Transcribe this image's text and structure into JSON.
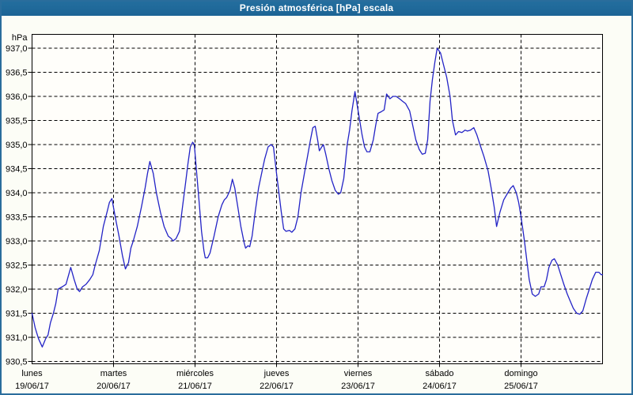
{
  "window": {
    "title": "Presión atmosférica [hPa] escala",
    "title_bar_color": "#1e699c",
    "border_color": "#2a6d9c",
    "background_color": "#fcfdf6"
  },
  "chart_data": {
    "type": "line",
    "title": "Presión atmosférica [hPa] escala",
    "unit_label": "hPa",
    "grid": "dashed",
    "legend": "none",
    "line_color": "#2323c6",
    "plot_background": "#fffefa",
    "y_axis": {
      "min": 930.5,
      "max": 937.0,
      "tick_step": 0.5,
      "tick_labels": [
        "937,0",
        "936,5",
        "936,0",
        "935,5",
        "935,0",
        "934,5",
        "934,0",
        "933,5",
        "933,0",
        "932,5",
        "932,0",
        "931,5",
        "931,0",
        "930,5"
      ]
    },
    "x_axis": {
      "hours_total": 168,
      "days": [
        {
          "name": "lunes",
          "date": "19/06/17"
        },
        {
          "name": "martes",
          "date": "20/06/17"
        },
        {
          "name": "miércoles",
          "date": "21/06/17"
        },
        {
          "name": "jueves",
          "date": "22/06/17"
        },
        {
          "name": "viernes",
          "date": "23/06/17"
        },
        {
          "name": "sábado",
          "date": "24/06/17"
        },
        {
          "name": "domingo",
          "date": "25/06/17"
        }
      ]
    },
    "series": [
      {
        "name": "Presión atmosférica",
        "points_hour_hpa": [
          [
            0,
            931.5
          ],
          [
            0.9,
            931.2
          ],
          [
            1.9,
            930.97
          ],
          [
            3,
            930.8
          ],
          [
            4,
            930.97
          ],
          [
            4.7,
            931.05
          ],
          [
            5.4,
            931.3
          ],
          [
            6.3,
            931.5
          ],
          [
            7,
            931.7
          ],
          [
            7.7,
            932
          ],
          [
            8.9,
            932.05
          ],
          [
            10,
            932.1
          ],
          [
            11,
            932.35
          ],
          [
            11.4,
            932.45
          ],
          [
            12.4,
            932.2
          ],
          [
            13.3,
            932
          ],
          [
            14,
            931.95
          ],
          [
            14.9,
            932.05
          ],
          [
            15.9,
            932.1
          ],
          [
            17,
            932.2
          ],
          [
            17.9,
            932.3
          ],
          [
            18.6,
            932.5
          ],
          [
            19.8,
            932.8
          ],
          [
            21,
            933.3
          ],
          [
            22.1,
            933.6
          ],
          [
            22.8,
            933.8
          ],
          [
            23.5,
            933.88
          ],
          [
            24.5,
            933.5
          ],
          [
            25.6,
            933.1
          ],
          [
            26.6,
            932.7
          ],
          [
            27.5,
            932.42
          ],
          [
            28.4,
            932.55
          ],
          [
            29.1,
            932.85
          ],
          [
            29.8,
            933
          ],
          [
            31,
            933.3
          ],
          [
            32.2,
            933.7
          ],
          [
            33.3,
            934.1
          ],
          [
            34,
            934.4
          ],
          [
            34.7,
            934.65
          ],
          [
            35.7,
            934.4
          ],
          [
            36.6,
            934
          ],
          [
            37.8,
            933.6
          ],
          [
            38.9,
            933.3
          ],
          [
            40.1,
            933.1
          ],
          [
            41,
            933.05
          ],
          [
            41.5,
            933
          ],
          [
            42.4,
            933.05
          ],
          [
            43.4,
            933.2
          ],
          [
            44.3,
            933.7
          ],
          [
            45.2,
            934.2
          ],
          [
            45.9,
            934.6
          ],
          [
            46.6,
            934.95
          ],
          [
            47.3,
            935.05
          ],
          [
            47.8,
            935
          ],
          [
            48.5,
            934.4
          ],
          [
            49.2,
            933.8
          ],
          [
            49.9,
            933.2
          ],
          [
            50.6,
            932.8
          ],
          [
            51,
            932.65
          ],
          [
            51.7,
            932.65
          ],
          [
            52.4,
            932.75
          ],
          [
            53.6,
            933.1
          ],
          [
            54.8,
            933.5
          ],
          [
            55.9,
            933.75
          ],
          [
            56.6,
            933.85
          ],
          [
            57.3,
            933.9
          ],
          [
            58.3,
            934.05
          ],
          [
            59,
            934.28
          ],
          [
            59.7,
            934.1
          ],
          [
            60.6,
            933.7
          ],
          [
            61.5,
            933.3
          ],
          [
            62.5,
            932.95
          ],
          [
            62.9,
            932.85
          ],
          [
            63.6,
            932.9
          ],
          [
            64.1,
            932.88
          ],
          [
            64.8,
            933.1
          ],
          [
            65.7,
            933.6
          ],
          [
            66.7,
            934.1
          ],
          [
            67.6,
            934.4
          ],
          [
            68.5,
            934.7
          ],
          [
            69.5,
            934.95
          ],
          [
            70.4,
            935
          ],
          [
            71.1,
            934.95
          ],
          [
            72,
            934.4
          ],
          [
            72.7,
            934
          ],
          [
            73.4,
            933.6
          ],
          [
            74.1,
            933.25
          ],
          [
            74.8,
            933.2
          ],
          [
            75.8,
            933.22
          ],
          [
            76.5,
            933.18
          ],
          [
            77.4,
            933.25
          ],
          [
            78.3,
            933.5
          ],
          [
            79.2,
            934
          ],
          [
            80.2,
            934.4
          ],
          [
            81.1,
            934.75
          ],
          [
            82,
            935.1
          ],
          [
            82.7,
            935.35
          ],
          [
            83.4,
            935.38
          ],
          [
            84.1,
            935.1
          ],
          [
            84.6,
            934.87
          ],
          [
            85.3,
            934.95
          ],
          [
            85.8,
            935
          ],
          [
            86.5,
            934.8
          ],
          [
            87.4,
            934.5
          ],
          [
            88.3,
            934.25
          ],
          [
            89.3,
            934.05
          ],
          [
            90.2,
            933.97
          ],
          [
            90.9,
            934
          ],
          [
            91.8,
            934.3
          ],
          [
            92.8,
            935
          ],
          [
            93.5,
            935.3
          ],
          [
            94.2,
            935.7
          ],
          [
            95.1,
            936.1
          ],
          [
            95.8,
            935.8
          ],
          [
            96.5,
            935.5
          ],
          [
            97.2,
            935.2
          ],
          [
            97.9,
            934.95
          ],
          [
            98.6,
            934.85
          ],
          [
            99.5,
            934.85
          ],
          [
            100.5,
            935.1
          ],
          [
            101.2,
            935.4
          ],
          [
            101.9,
            935.65
          ],
          [
            102.8,
            935.68
          ],
          [
            103.7,
            935.72
          ],
          [
            104.4,
            936.05
          ],
          [
            105.4,
            935.95
          ],
          [
            106.3,
            936
          ],
          [
            107.2,
            936
          ],
          [
            108.2,
            935.95
          ],
          [
            109.1,
            935.9
          ],
          [
            110,
            935.85
          ],
          [
            111.2,
            935.7
          ],
          [
            112.1,
            935.4
          ],
          [
            113,
            935.1
          ],
          [
            114,
            934.9
          ],
          [
            114.9,
            934.8
          ],
          [
            115.8,
            934.82
          ],
          [
            116.5,
            935.1
          ],
          [
            117.2,
            935.9
          ],
          [
            117.9,
            936.35
          ],
          [
            118.6,
            936.7
          ],
          [
            119.3,
            937
          ],
          [
            120.3,
            936.9
          ],
          [
            121.2,
            936.65
          ],
          [
            122.1,
            936.4
          ],
          [
            123.1,
            936
          ],
          [
            123.8,
            935.5
          ],
          [
            124.7,
            935.2
          ],
          [
            125.6,
            935.27
          ],
          [
            126.6,
            935.25
          ],
          [
            127.5,
            935.3
          ],
          [
            128.2,
            935.28
          ],
          [
            129.1,
            935.3
          ],
          [
            130.1,
            935.35
          ],
          [
            131,
            935.2
          ],
          [
            131.9,
            935
          ],
          [
            133.1,
            934.75
          ],
          [
            134.3,
            934.45
          ],
          [
            135.2,
            934.1
          ],
          [
            136.1,
            933.7
          ],
          [
            136.8,
            933.3
          ],
          [
            137.8,
            933.6
          ],
          [
            138.9,
            933.85
          ],
          [
            140.1,
            934
          ],
          [
            141,
            934.1
          ],
          [
            141.7,
            934.15
          ],
          [
            142.6,
            934
          ],
          [
            143.3,
            933.8
          ],
          [
            144,
            933.5
          ],
          [
            145,
            933
          ],
          [
            145.7,
            932.6
          ],
          [
            146.4,
            932.2
          ],
          [
            147.3,
            931.9
          ],
          [
            148.2,
            931.85
          ],
          [
            149.2,
            931.9
          ],
          [
            149.9,
            932.05
          ],
          [
            150.8,
            932.05
          ],
          [
            151.5,
            932.2
          ],
          [
            152.2,
            932.45
          ],
          [
            153.1,
            932.6
          ],
          [
            153.8,
            932.63
          ],
          [
            154.8,
            932.5
          ],
          [
            155.7,
            932.3
          ],
          [
            156.6,
            932.1
          ],
          [
            157.6,
            931.9
          ],
          [
            158.5,
            931.75
          ],
          [
            159.4,
            931.6
          ],
          [
            160.4,
            931.5
          ],
          [
            161.3,
            931.48
          ],
          [
            162.2,
            931.55
          ],
          [
            163.2,
            931.8
          ],
          [
            164.1,
            932
          ],
          [
            165,
            932.2
          ],
          [
            166,
            932.35
          ],
          [
            166.9,
            932.35
          ],
          [
            167.6,
            932.3
          ],
          [
            168,
            932.3
          ]
        ]
      }
    ]
  }
}
